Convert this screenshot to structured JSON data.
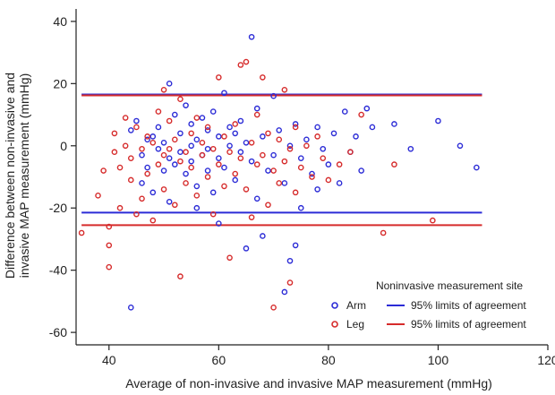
{
  "chart_data": {
    "type": "scatter",
    "xlabel": "Average of non-invasive and invasive MAP measurement (mmHg)",
    "ylabel_lines": [
      "Difference between non-invasive and",
      "invasive MAP measurement (mmHg)"
    ],
    "xlim": [
      34,
      120
    ],
    "ylim": [
      -64,
      44
    ],
    "x_ticks": [
      40,
      60,
      80,
      100,
      120
    ],
    "y_ticks": [
      40,
      20,
      0,
      -20,
      -40,
      -60
    ],
    "grid": false,
    "legend": {
      "title": "Noninvasive measurement site",
      "placement": "bottom-right",
      "entries": [
        {
          "label": "Arm",
          "kind": "marker",
          "color": "#2b2bd6"
        },
        {
          "label": "95% limits of agreement",
          "kind": "line",
          "color": "#2b2bd6"
        },
        {
          "label": "Leg",
          "kind": "marker",
          "color": "#d62b2b"
        },
        {
          "label": "95% limits of agreement",
          "kind": "line",
          "color": "#d62b2b"
        }
      ]
    },
    "limits_of_agreement": [
      {
        "series": "Arm",
        "color": "#2b2bd6",
        "upper": 16.5,
        "lower": -21.5
      },
      {
        "series": "Leg",
        "color": "#d62b2b",
        "upper": 16.2,
        "lower": -25.5
      }
    ],
    "series": [
      {
        "name": "Arm",
        "color": "#2b2bd6",
        "points": [
          [
            44,
            -52
          ],
          [
            44,
            5
          ],
          [
            45,
            8
          ],
          [
            46,
            -3
          ],
          [
            46,
            -12
          ],
          [
            47,
            2
          ],
          [
            47,
            -7
          ],
          [
            48,
            3
          ],
          [
            48,
            -15
          ],
          [
            49,
            -1
          ],
          [
            49,
            6
          ],
          [
            50,
            -8
          ],
          [
            50,
            1
          ],
          [
            51,
            -4
          ],
          [
            51,
            20
          ],
          [
            51,
            -18
          ],
          [
            52,
            10
          ],
          [
            52,
            -6
          ],
          [
            53,
            -2
          ],
          [
            53,
            4
          ],
          [
            54,
            -9
          ],
          [
            54,
            13
          ],
          [
            55,
            0
          ],
          [
            55,
            -5
          ],
          [
            55,
            7
          ],
          [
            56,
            -13
          ],
          [
            56,
            2
          ],
          [
            56,
            -20
          ],
          [
            57,
            -3
          ],
          [
            57,
            9
          ],
          [
            58,
            5
          ],
          [
            58,
            -8
          ],
          [
            58,
            -1
          ],
          [
            59,
            11
          ],
          [
            59,
            -15
          ],
          [
            60,
            3
          ],
          [
            60,
            -4
          ],
          [
            60,
            -25
          ],
          [
            61,
            17
          ],
          [
            61,
            -7
          ],
          [
            62,
            0
          ],
          [
            62,
            6
          ],
          [
            63,
            -11
          ],
          [
            63,
            4
          ],
          [
            64,
            -2
          ],
          [
            64,
            8
          ],
          [
            65,
            -33
          ],
          [
            65,
            1
          ],
          [
            66,
            35
          ],
          [
            66,
            -5
          ],
          [
            67,
            12
          ],
          [
            67,
            -17
          ],
          [
            68,
            -29
          ],
          [
            68,
            3
          ],
          [
            69,
            -8
          ],
          [
            70,
            16
          ],
          [
            70,
            -3
          ],
          [
            71,
            5
          ],
          [
            72,
            -47
          ],
          [
            72,
            -12
          ],
          [
            73,
            0
          ],
          [
            73,
            -37
          ],
          [
            74,
            -32
          ],
          [
            74,
            7
          ],
          [
            75,
            -4
          ],
          [
            75,
            -20
          ],
          [
            76,
            2
          ],
          [
            77,
            -9
          ],
          [
            78,
            -14
          ],
          [
            78,
            6
          ],
          [
            79,
            -1
          ],
          [
            80,
            -6
          ],
          [
            81,
            4
          ],
          [
            82,
            -12
          ],
          [
            83,
            11
          ],
          [
            84,
            -2
          ],
          [
            85,
            3
          ],
          [
            86,
            -8
          ],
          [
            87,
            12
          ],
          [
            88,
            6
          ],
          [
            92,
            7
          ],
          [
            95,
            -1
          ],
          [
            100,
            8
          ],
          [
            104,
            0
          ],
          [
            107,
            -7
          ]
        ]
      },
      {
        "name": "Leg",
        "color": "#d62b2b",
        "points": [
          [
            35,
            -28
          ],
          [
            38,
            -16
          ],
          [
            39,
            -8
          ],
          [
            40,
            -39
          ],
          [
            40,
            -32
          ],
          [
            40,
            -26
          ],
          [
            41,
            -2
          ],
          [
            41,
            4
          ],
          [
            42,
            -7
          ],
          [
            42,
            -20
          ],
          [
            43,
            0
          ],
          [
            43,
            9
          ],
          [
            44,
            -4
          ],
          [
            44,
            -11
          ],
          [
            45,
            6
          ],
          [
            45,
            -22
          ],
          [
            46,
            -1
          ],
          [
            46,
            -17
          ],
          [
            47,
            3
          ],
          [
            47,
            -9
          ],
          [
            48,
            -24
          ],
          [
            48,
            1
          ],
          [
            49,
            -6
          ],
          [
            49,
            11
          ],
          [
            50,
            18
          ],
          [
            50,
            -3
          ],
          [
            50,
            -14
          ],
          [
            51,
            -1
          ],
          [
            51,
            8
          ],
          [
            52,
            -19
          ],
          [
            52,
            2
          ],
          [
            53,
            -42
          ],
          [
            53,
            -5
          ],
          [
            53,
            15
          ],
          [
            54,
            -2
          ],
          [
            54,
            -12
          ],
          [
            55,
            4
          ],
          [
            55,
            -7
          ],
          [
            56,
            -16
          ],
          [
            56,
            9
          ],
          [
            57,
            -3
          ],
          [
            57,
            1
          ],
          [
            58,
            -10
          ],
          [
            58,
            6
          ],
          [
            59,
            -22
          ],
          [
            59,
            -1
          ],
          [
            60,
            22
          ],
          [
            60,
            -6
          ],
          [
            61,
            3
          ],
          [
            61,
            -13
          ],
          [
            62,
            -36
          ],
          [
            62,
            -2
          ],
          [
            63,
            7
          ],
          [
            63,
            -9
          ],
          [
            64,
            26
          ],
          [
            64,
            -4
          ],
          [
            65,
            27
          ],
          [
            65,
            -14
          ],
          [
            66,
            1
          ],
          [
            66,
            -23
          ],
          [
            67,
            -6
          ],
          [
            67,
            10
          ],
          [
            68,
            -3
          ],
          [
            68,
            22
          ],
          [
            69,
            -19
          ],
          [
            69,
            4
          ],
          [
            70,
            -52
          ],
          [
            70,
            -8
          ],
          [
            71,
            2
          ],
          [
            71,
            -12
          ],
          [
            72,
            18
          ],
          [
            72,
            -5
          ],
          [
            73,
            -44
          ],
          [
            73,
            -1
          ],
          [
            74,
            -15
          ],
          [
            74,
            6
          ],
          [
            75,
            -7
          ],
          [
            76,
            0
          ],
          [
            77,
            -10
          ],
          [
            78,
            3
          ],
          [
            79,
            -4
          ],
          [
            80,
            -11
          ],
          [
            82,
            -6
          ],
          [
            84,
            -2
          ],
          [
            86,
            10
          ],
          [
            90,
            -28
          ],
          [
            92,
            -6
          ],
          [
            99,
            -24
          ]
        ]
      }
    ]
  }
}
